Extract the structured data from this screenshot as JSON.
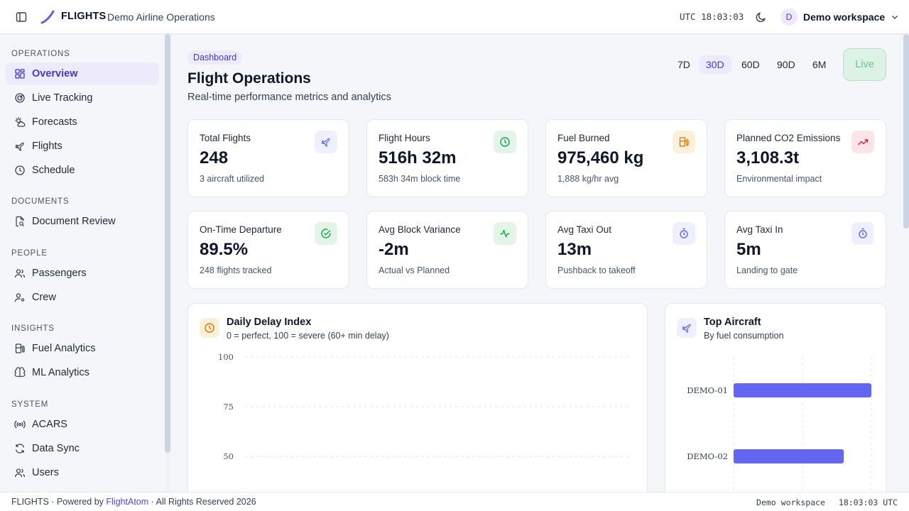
{
  "header": {
    "brand": "FLIGHTS",
    "subtitle": "Demo Airline Operations",
    "clock": "UTC 18:03:03",
    "workspace_initial": "D",
    "workspace_name": "Demo workspace",
    "icons": [
      "sidebar-toggle-icon",
      "flight-logo-icon",
      "moon-icon",
      "chevron-down-icon"
    ]
  },
  "sidebar": {
    "sections": [
      {
        "title": "OPERATIONS",
        "items": [
          {
            "label": "Overview",
            "icon": "grid-icon",
            "active": true
          },
          {
            "label": "Live Tracking",
            "icon": "radar-icon"
          },
          {
            "label": "Forecasts",
            "icon": "sun-cloud-icon"
          },
          {
            "label": "Flights",
            "icon": "plane-icon"
          },
          {
            "label": "Schedule",
            "icon": "clock-icon"
          }
        ]
      },
      {
        "title": "DOCUMENTS",
        "items": [
          {
            "label": "Document Review",
            "icon": "document-search-icon"
          }
        ]
      },
      {
        "title": "PEOPLE",
        "items": [
          {
            "label": "Passengers",
            "icon": "users-icon"
          },
          {
            "label": "Crew",
            "icon": "user-cog-icon"
          }
        ]
      },
      {
        "title": "INSIGHTS",
        "items": [
          {
            "label": "Fuel Analytics",
            "icon": "fuel-icon"
          },
          {
            "label": "ML Analytics",
            "icon": "brain-icon"
          }
        ]
      },
      {
        "title": "SYSTEM",
        "items": [
          {
            "label": "ACARS",
            "icon": "radio-icon"
          },
          {
            "label": "Data Sync",
            "icon": "refresh-icon"
          },
          {
            "label": "Users",
            "icon": "users-icon"
          }
        ]
      }
    ]
  },
  "main": {
    "breadcrumb": "Dashboard",
    "title": "Flight Operations",
    "subtitle": "Real-time performance metrics and analytics",
    "ranges": [
      {
        "label": "7D"
      },
      {
        "label": "30D",
        "active": true
      },
      {
        "label": "60D"
      },
      {
        "label": "90D"
      },
      {
        "label": "6M"
      }
    ],
    "live_label": "Live",
    "kpis": [
      {
        "label": "Total Flights",
        "value": "248",
        "sub": "3 aircraft utilized",
        "icon": "plane-icon",
        "color": "#6366f1",
        "bg": "#eef0fd"
      },
      {
        "label": "Flight Hours",
        "value": "516h 32m",
        "sub": "583h 34m block time",
        "icon": "clock-icon",
        "color": "#16a34a",
        "bg": "#e3f5e9"
      },
      {
        "label": "Fuel Burned",
        "value": "975,460 kg",
        "sub": "1,888 kg/hr avg",
        "icon": "fuel-pump-icon",
        "color": "#d97706",
        "bg": "#fdf0d8"
      },
      {
        "label": "Planned CO2 Emissions",
        "value": "3,108.3t",
        "sub": "Environmental impact",
        "icon": "trending-up-icon",
        "color": "#e11d48",
        "bg": "#fde4e6"
      },
      {
        "label": "On-Time Departure",
        "value": "89.5%",
        "sub": "248 flights tracked",
        "icon": "check-circle-icon",
        "color": "#16a34a",
        "bg": "#e3f5e9"
      },
      {
        "label": "Avg Block Variance",
        "value": "-2m",
        "sub": "Actual vs Planned",
        "icon": "activity-icon",
        "color": "#16a34a",
        "bg": "#e3f5e9"
      },
      {
        "label": "Avg Taxi Out",
        "value": "13m",
        "sub": "Pushback to takeoff",
        "icon": "timer-icon",
        "color": "#6366f1",
        "bg": "#eef0fd"
      },
      {
        "label": "Avg Taxi In",
        "value": "5m",
        "sub": "Landing to gate",
        "icon": "timer-icon",
        "color": "#6366f1",
        "bg": "#eef0fd"
      }
    ],
    "delay_panel": {
      "title": "Daily Delay Index",
      "subtitle": "0 = perfect, 100 = severe (60+ min delay)",
      "icon": "clock-icon"
    },
    "aircraft_panel": {
      "title": "Top Aircraft",
      "subtitle": "By fuel consumption",
      "icon": "plane-icon"
    }
  },
  "chart_data": [
    {
      "type": "line",
      "title": "Daily Delay Index",
      "subtitle": "0 = perfect, 100 = severe (60+ min delay)",
      "y_ticks": [
        100,
        75,
        50
      ],
      "ylim": [
        0,
        100
      ],
      "grid": true,
      "series": []
    },
    {
      "type": "bar",
      "orientation": "horizontal",
      "title": "Top Aircraft",
      "subtitle": "By fuel consumption",
      "categories": [
        "DEMO-01",
        "DEMO-02"
      ],
      "values": [
        1.0,
        0.8
      ],
      "grid": true,
      "color": "#6366f1"
    }
  ],
  "footer": {
    "brand": "FLIGHTS",
    "powered_prefix": "· Powered by",
    "link": "FlightAtom",
    "rights": "· All Rights Reserved 2026",
    "workspace": "Demo workspace",
    "time": "18:03:03 UTC"
  }
}
